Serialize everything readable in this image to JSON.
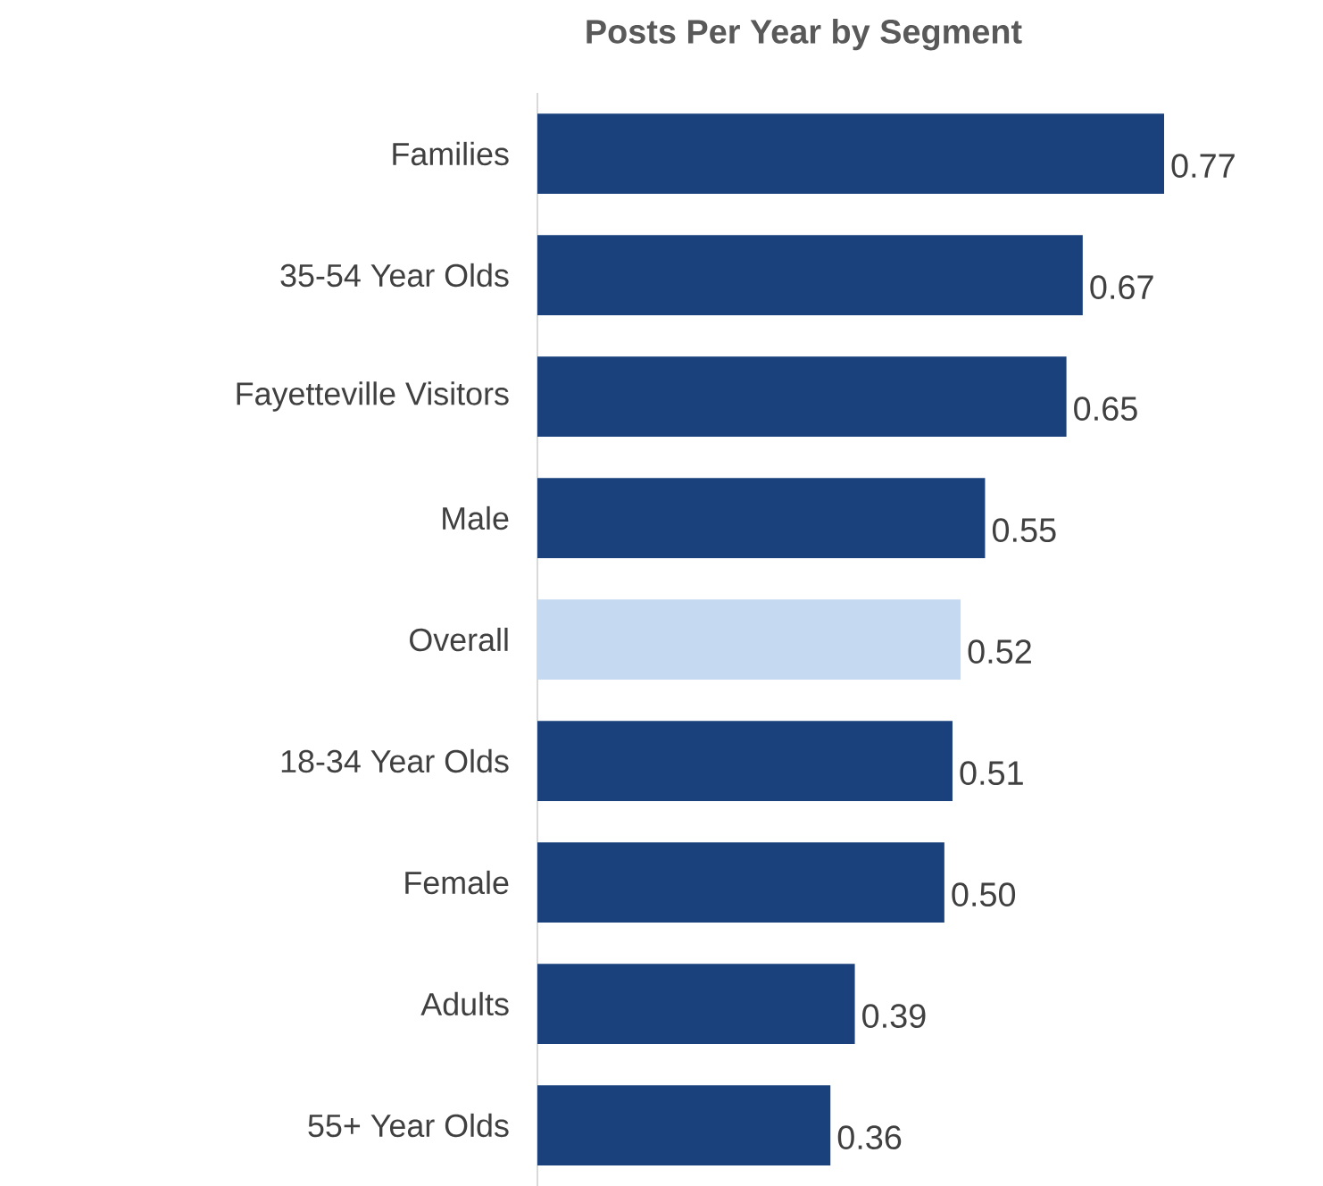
{
  "chart_data": {
    "type": "bar",
    "orientation": "horizontal",
    "title": "Posts Per Year by Segment",
    "categories": [
      "Families",
      "35-54 Year Olds",
      "Fayetteville Visitors",
      "Male",
      "Overall",
      "18-34 Year Olds",
      "Female",
      "Adults",
      "55+ Year Olds"
    ],
    "values": [
      0.77,
      0.67,
      0.65,
      0.55,
      0.52,
      0.51,
      0.5,
      0.39,
      0.36
    ],
    "value_labels": [
      "0.77",
      "0.67",
      "0.65",
      "0.55",
      "0.52",
      "0.51",
      "0.50",
      "0.39",
      "0.36"
    ],
    "colors": [
      "#1b417c",
      "#1b417c",
      "#1b417c",
      "#1b417c",
      "#c5d9f1",
      "#1b417c",
      "#1b417c",
      "#1b417c",
      "#1b417c"
    ],
    "tick_labels": "y"
  }
}
